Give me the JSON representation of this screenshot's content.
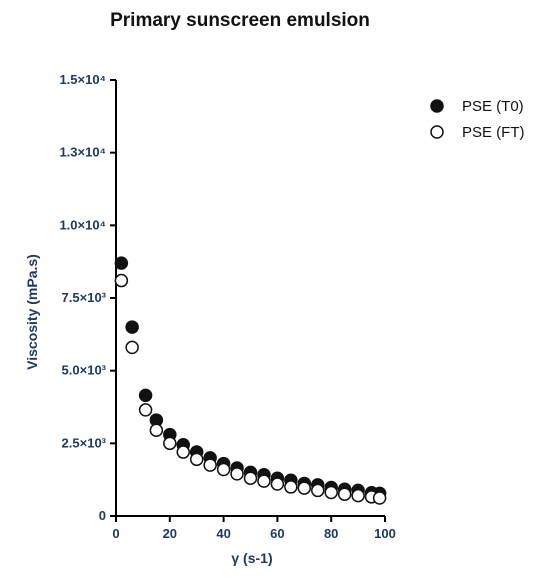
{
  "chart_data": {
    "type": "scatter",
    "title": "Primary sunscreen emulsion",
    "xlabel": "γ (s-1)",
    "ylabel": "Viscosity (mPa.s)",
    "xlim": [
      0,
      100
    ],
    "ylim": [
      0,
      15000
    ],
    "x_ticks": [
      "0",
      "20",
      "40",
      "60",
      "80",
      "100"
    ],
    "y_ticks": [
      "0",
      "2.5×10³",
      "5.0×10³",
      "7.5×10³",
      "1.0×10⁴",
      "1.3×10⁴",
      "1.5×10⁴"
    ],
    "grid": false,
    "legend_position": "top-right",
    "series": [
      {
        "name": "PSE (T0)",
        "marker": "filled-circle",
        "color": "#111111",
        "x": [
          2,
          6,
          11,
          15,
          20,
          25,
          30,
          35,
          40,
          45,
          50,
          55,
          60,
          65,
          70,
          75,
          80,
          85,
          90,
          95,
          98
        ],
        "y": [
          8700,
          6500,
          4150,
          3300,
          2800,
          2450,
          2200,
          2000,
          1800,
          1650,
          1500,
          1420,
          1300,
          1230,
          1120,
          1070,
          980,
          920,
          880,
          800,
          780
        ]
      },
      {
        "name": "PSE (FT)",
        "marker": "open-circle",
        "color": "#111111",
        "x": [
          2,
          6,
          11,
          15,
          20,
          25,
          30,
          35,
          40,
          45,
          50,
          55,
          60,
          65,
          70,
          75,
          80,
          85,
          90,
          95,
          98
        ],
        "y": [
          8100,
          5800,
          3650,
          2950,
          2500,
          2200,
          1950,
          1750,
          1600,
          1450,
          1300,
          1200,
          1100,
          1000,
          960,
          880,
          810,
          750,
          700,
          660,
          620
        ]
      }
    ]
  }
}
